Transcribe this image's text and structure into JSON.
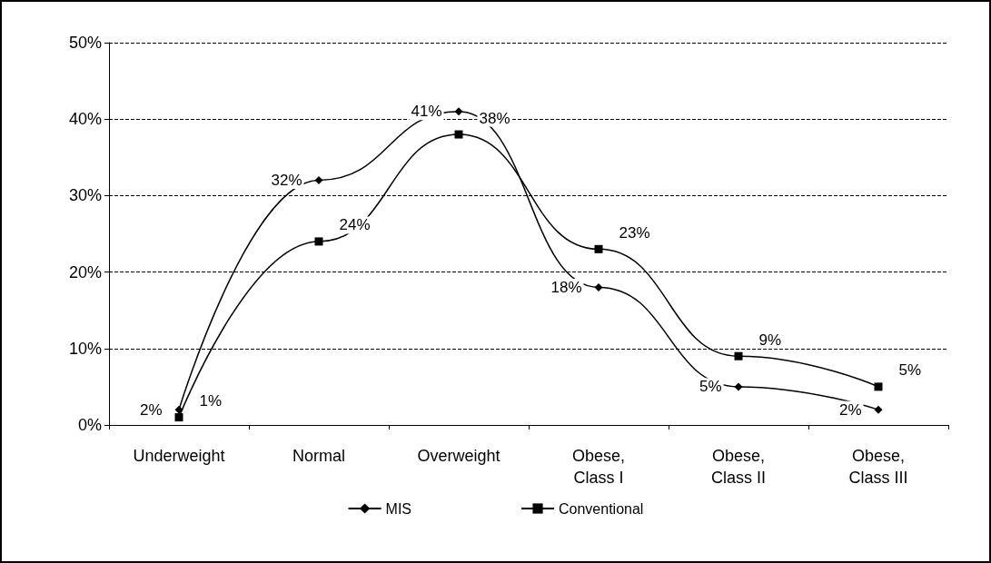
{
  "chart_data": {
    "type": "line",
    "categories": [
      "Underweight",
      "Normal",
      "Overweight",
      "Obese,\nClass I",
      "Obese,\nClass II",
      "Obese,\nClass III"
    ],
    "series": [
      {
        "name": "MIS",
        "color": "#000000",
        "marker": "diamond",
        "values": [
          2,
          32,
          41,
          18,
          5,
          2
        ],
        "value_labels": [
          "2%",
          "32%",
          "41%",
          "18%",
          "5%",
          "2%"
        ]
      },
      {
        "name": "Conventional",
        "color": "#000000",
        "marker": "square",
        "values": [
          1,
          24,
          38,
          23,
          9,
          5
        ],
        "value_labels": [
          "1%",
          "24%",
          "38%",
          "23%",
          "9%",
          "5%"
        ]
      }
    ],
    "ylim": [
      0,
      50
    ],
    "yticks": [
      {
        "value": 0,
        "label": "0%"
      },
      {
        "value": 10,
        "label": "10%"
      },
      {
        "value": 20,
        "label": "20%"
      },
      {
        "value": 30,
        "label": "30%"
      },
      {
        "value": 40,
        "label": "40%"
      },
      {
        "value": 50,
        "label": "50%"
      }
    ],
    "grid": "y",
    "legend": "bottom",
    "line_style": "solid"
  }
}
